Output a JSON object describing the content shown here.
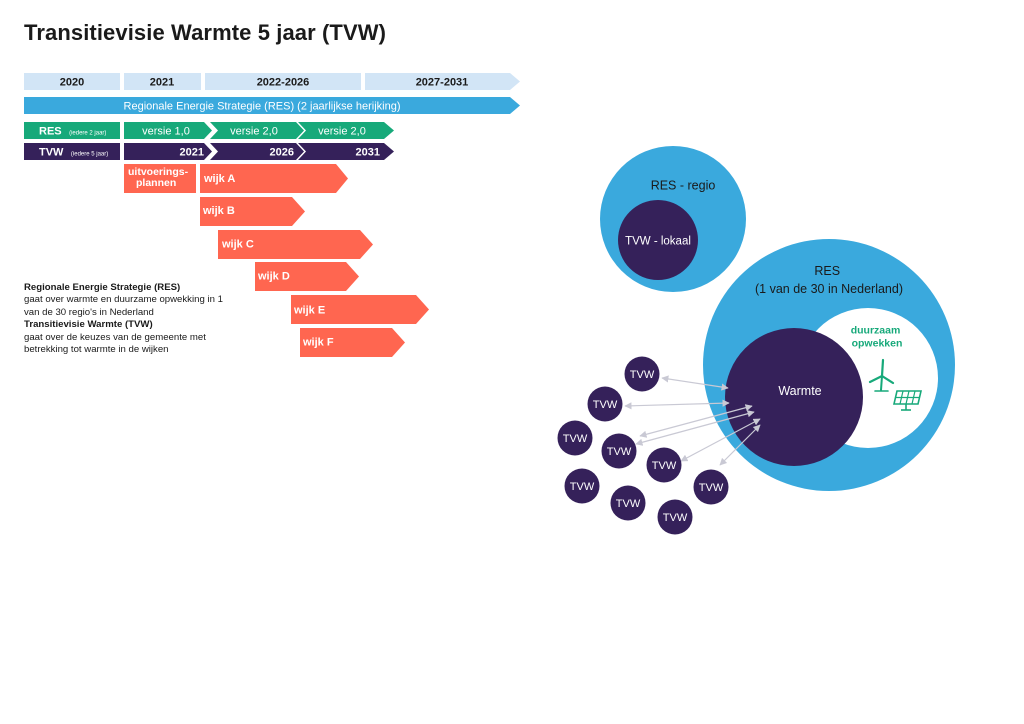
{
  "title": "Transitievisie Warmte 5 jaar (TVW)",
  "colors": {
    "light_blue": "#d2e5f6",
    "blue": "#3aa9dd",
    "green": "#17a97a",
    "purple": "#35215a",
    "orange": "#ff6650",
    "arrow_gray": "#c9c9d4"
  },
  "timeline": {
    "years": [
      "2020",
      "2021",
      "2022-2026",
      "2027-2031"
    ],
    "res_strategy": "Regionale Energie Strategie (RES) (2 jaarlijkse herijking)",
    "res_row": {
      "label": "RES",
      "note": "(iedere 2 jaar)",
      "versions": [
        "versie 1,0",
        "versie 2,0",
        "versie 2,0"
      ]
    },
    "tvw_row": {
      "label": "TVW",
      "note": "(iedere 5 jaar)",
      "years": [
        "2021",
        "2026",
        "2031"
      ]
    },
    "plans_label": [
      "uitvoerings-",
      "plannen"
    ],
    "wijken": [
      "wijk A",
      "wijk B",
      "wijk C",
      "wijk D",
      "wijk E",
      "wijk F"
    ]
  },
  "description": {
    "res_heading": "Regionale Energie Strategie (RES)",
    "res_text_lines": [
      "gaat over warmte en duurzame opwekking in 1",
      "van de 30 regio's in Nederland"
    ],
    "tvw_heading": "Transitievisie Warmte (TVW)",
    "tvw_text_lines": [
      "gaat over de keuzes van de gemeente met",
      "betrekking tot warmte in de wijken"
    ]
  },
  "diagram": {
    "res_regio": "RES - regio",
    "tvw_lokaal": "TVW - lokaal",
    "res_big": [
      "RES",
      "(1 van de 30 in Nederland)"
    ],
    "duurzaam": [
      "duurzaam",
      "opwekken"
    ],
    "warmte": "Warmte",
    "tvw_node_label": "TVW",
    "wind_icon": "wind-turbine-icon",
    "solar_icon": "solar-panel-icon"
  }
}
